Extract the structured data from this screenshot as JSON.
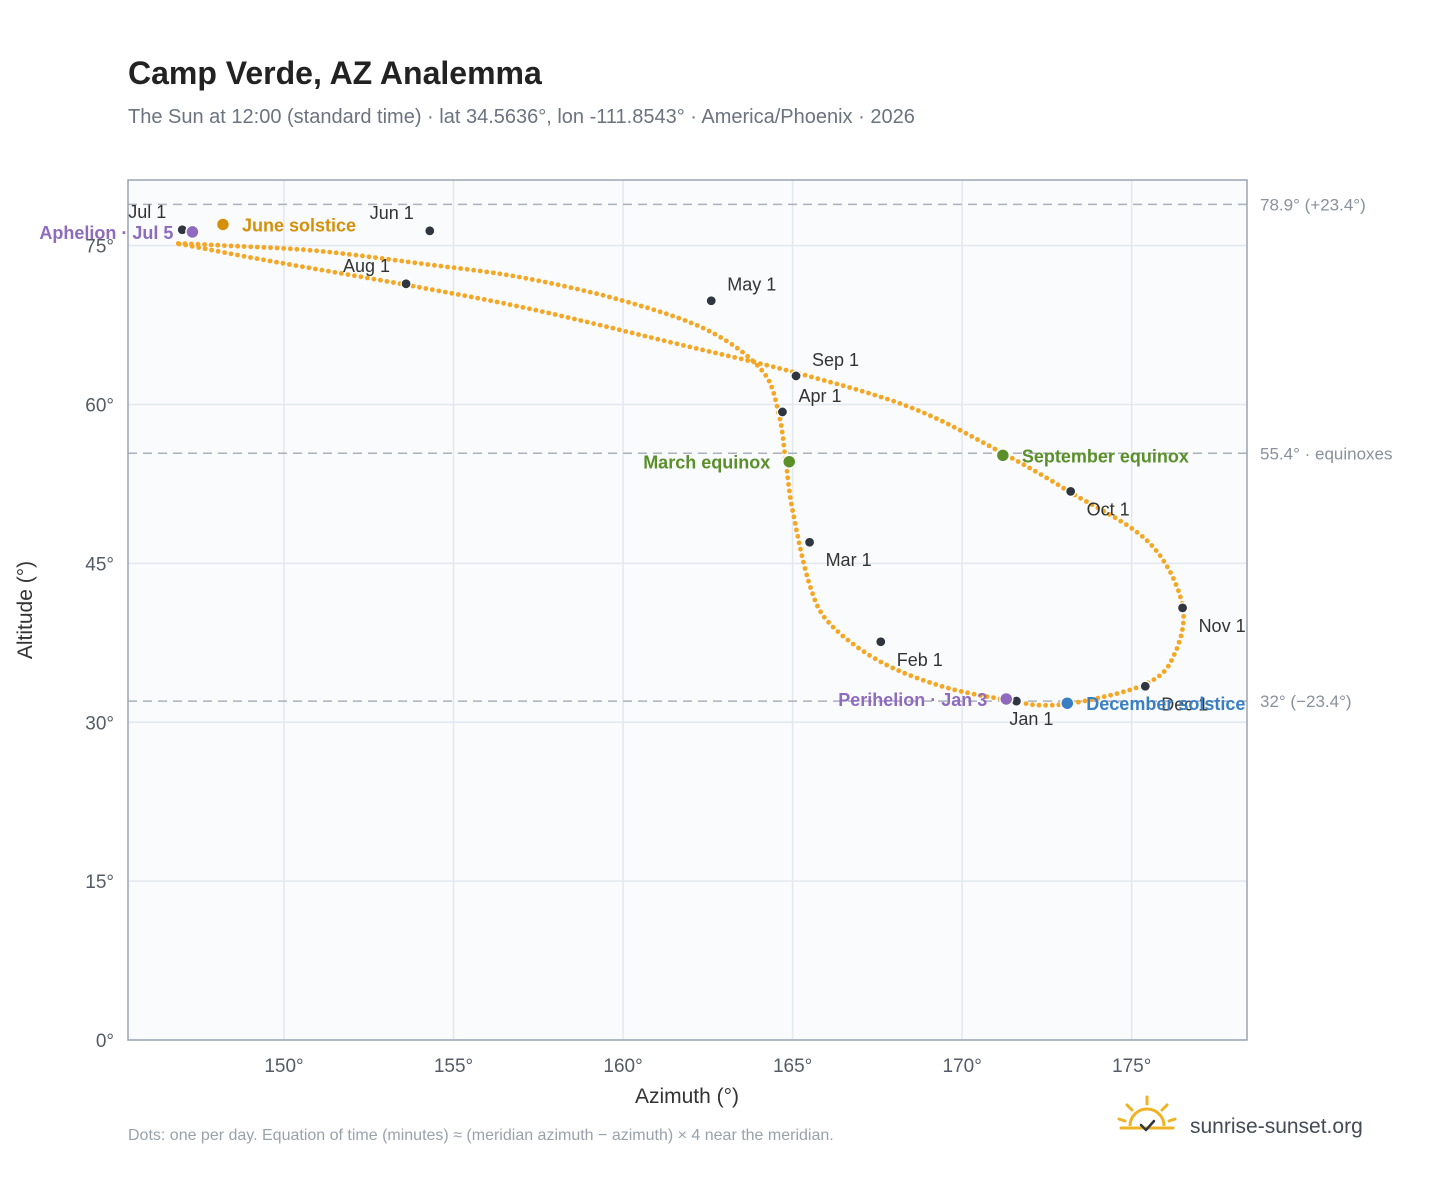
{
  "chart_data": {
    "type": "scatter",
    "title": "Camp Verde, AZ Analemma",
    "subtitle": "The Sun at 12:00 (standard time) · lat 34.5636°, lon -111.8543° · America/Phoenix · 2026",
    "xlabel": "Azimuth (°)",
    "ylabel": "Altitude (°)",
    "xlim": [
      145.4,
      178.4
    ],
    "ylim": [
      0,
      81.2
    ],
    "x_ticks": [
      150,
      155,
      160,
      165,
      170,
      175
    ],
    "x_tick_labels": [
      "150°",
      "155°",
      "160°",
      "165°",
      "170°",
      "175°"
    ],
    "y_ticks": [
      0,
      15,
      30,
      45,
      60,
      75
    ],
    "y_tick_labels": [
      "0°",
      "15°",
      "30°",
      "45°",
      "60°",
      "75°"
    ],
    "grid": true,
    "series": [
      {
        "color": "#f5a623",
        "points": [
          [
            171.5,
            32.0
          ],
          [
            169.5,
            33.3
          ],
          [
            167.6,
            35.7
          ],
          [
            166.1,
            39.3
          ],
          [
            165.5,
            43.0
          ],
          [
            165.0,
            50.0
          ],
          [
            164.8,
            54.5
          ],
          [
            164.6,
            59.0
          ],
          [
            164.1,
            63.2
          ],
          [
            162.5,
            67.0
          ],
          [
            160.0,
            69.8
          ],
          [
            157.0,
            72.0
          ],
          [
            154.3,
            73.2
          ],
          [
            151.0,
            74.5
          ],
          [
            148.3,
            75.0
          ],
          [
            146.9,
            75.2
          ],
          [
            147.2,
            75.0
          ],
          [
            149.5,
            73.6
          ],
          [
            153.6,
            71.3
          ],
          [
            157.3,
            69.0
          ],
          [
            161.5,
            65.8
          ],
          [
            165.1,
            63.0
          ],
          [
            168.5,
            59.7
          ],
          [
            171.2,
            55.4
          ],
          [
            173.2,
            51.7
          ],
          [
            175.5,
            47.0
          ],
          [
            176.5,
            41.0
          ],
          [
            176.2,
            36.0
          ],
          [
            175.4,
            33.6
          ],
          [
            173.6,
            32.0
          ],
          [
            172.4,
            31.6
          ],
          [
            171.5,
            32.0
          ]
        ]
      }
    ],
    "months": [
      {
        "label": "Jan 1",
        "az": 171.6,
        "alt": 32.0,
        "pos": "below"
      },
      {
        "label": "Feb 1",
        "az": 167.6,
        "alt": 37.6,
        "pos": "below-right"
      },
      {
        "label": "Mar 1",
        "az": 165.5,
        "alt": 47.0,
        "pos": "below-right"
      },
      {
        "label": "Apr 1",
        "az": 164.7,
        "alt": 59.3,
        "pos": "above-right"
      },
      {
        "label": "May 1",
        "az": 162.6,
        "alt": 69.8,
        "pos": "above-right"
      },
      {
        "label": "Jun 1",
        "az": 154.3,
        "alt": 76.4,
        "pos": "above-left"
      },
      {
        "label": "Jul 1",
        "az": 147.0,
        "alt": 76.5,
        "pos": "above-left"
      },
      {
        "label": "Aug 1",
        "az": 153.6,
        "alt": 71.4,
        "pos": "above-left"
      },
      {
        "label": "Sep 1",
        "az": 165.1,
        "alt": 62.7,
        "pos": "above-right"
      },
      {
        "label": "Oct 1",
        "az": 173.2,
        "alt": 51.8,
        "pos": "below-right"
      },
      {
        "label": "Nov 1",
        "az": 176.5,
        "alt": 40.8,
        "pos": "below-right"
      },
      {
        "label": "Dec 1",
        "az": 175.4,
        "alt": 33.4,
        "pos": "below-right"
      }
    ],
    "events": [
      {
        "label": "June solstice",
        "az": 148.2,
        "alt": 77.0,
        "color": "#d4900a",
        "side": "right"
      },
      {
        "label": "Aphelion · Jul 5",
        "az": 147.3,
        "alt": 76.3,
        "color": "#8e6bbf",
        "side": "left"
      },
      {
        "label": "March equinox",
        "az": 164.9,
        "alt": 54.6,
        "color": "#5a8f29",
        "side": "left"
      },
      {
        "label": "September equinox",
        "az": 171.2,
        "alt": 55.2,
        "color": "#5a8f29",
        "side": "right"
      },
      {
        "label": "Perihelion · Jan 3",
        "az": 171.3,
        "alt": 32.2,
        "color": "#8e6bbf",
        "side": "left"
      },
      {
        "label": "December solstice",
        "az": 173.1,
        "alt": 31.8,
        "color": "#3a7fc4",
        "side": "right"
      }
    ],
    "reference_lines": [
      {
        "alt": 78.9,
        "label": "78.9° (+23.4°)"
      },
      {
        "alt": 55.4,
        "label": "55.4° · equinoxes"
      },
      {
        "alt": 32.0,
        "label": "32° (−23.4°)"
      }
    ],
    "footnote": "Dots: one per day. Equation of time (minutes) ≈ (meridian azimuth − azimuth) × 4 near the meridian."
  },
  "brand": {
    "name": "sunrise-sunset.org",
    "icon": "sun-logo-icon",
    "color": "#f0b323"
  },
  "colors": {
    "curve": "#f5a623",
    "month_dot": "#2f3640",
    "plot_bg": "#f9fbfd",
    "grid": "#e3e8ef",
    "frame": "#9aa4b1",
    "ref_line": "#aab1bb"
  }
}
